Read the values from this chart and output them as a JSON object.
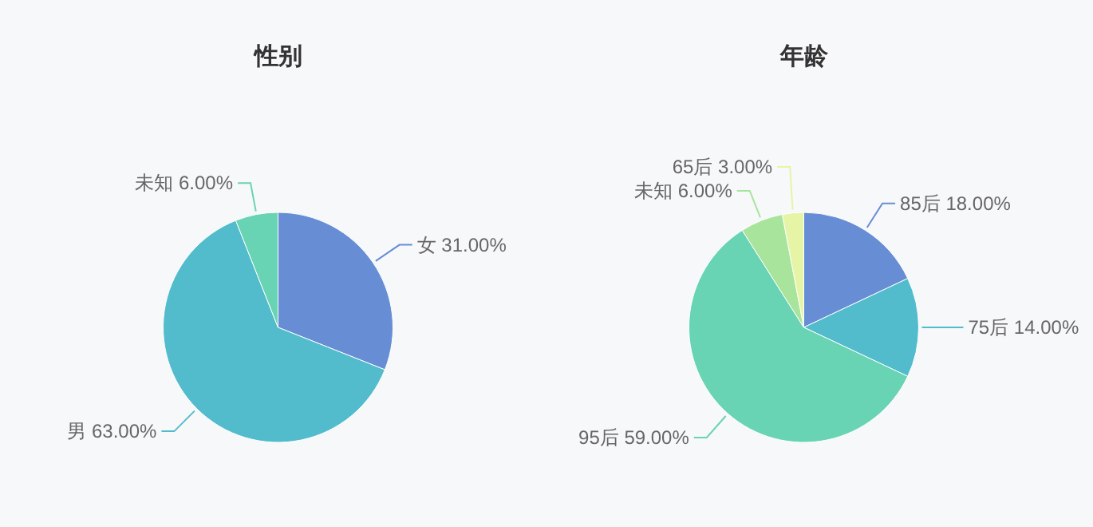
{
  "chart_data": [
    {
      "type": "pie",
      "title": "性别",
      "categories": [
        "女",
        "男",
        "未知"
      ],
      "values": [
        31,
        63,
        6
      ],
      "value_labels": [
        "31.00%",
        "63.00%",
        "6.00%"
      ],
      "colors": [
        "#678ed4",
        "#53bccc",
        "#68d4b4"
      ]
    },
    {
      "type": "pie",
      "title": "年龄",
      "categories": [
        "85后",
        "75后",
        "95后",
        "未知",
        "65后"
      ],
      "values": [
        18,
        14,
        59,
        6,
        3
      ],
      "value_labels": [
        "18.00%",
        "14.00%",
        "59.00%",
        "6.00%",
        "3.00%"
      ],
      "colors": [
        "#678ed4",
        "#53bccc",
        "#68d4b4",
        "#a8e49c",
        "#e5f5a5"
      ]
    }
  ]
}
